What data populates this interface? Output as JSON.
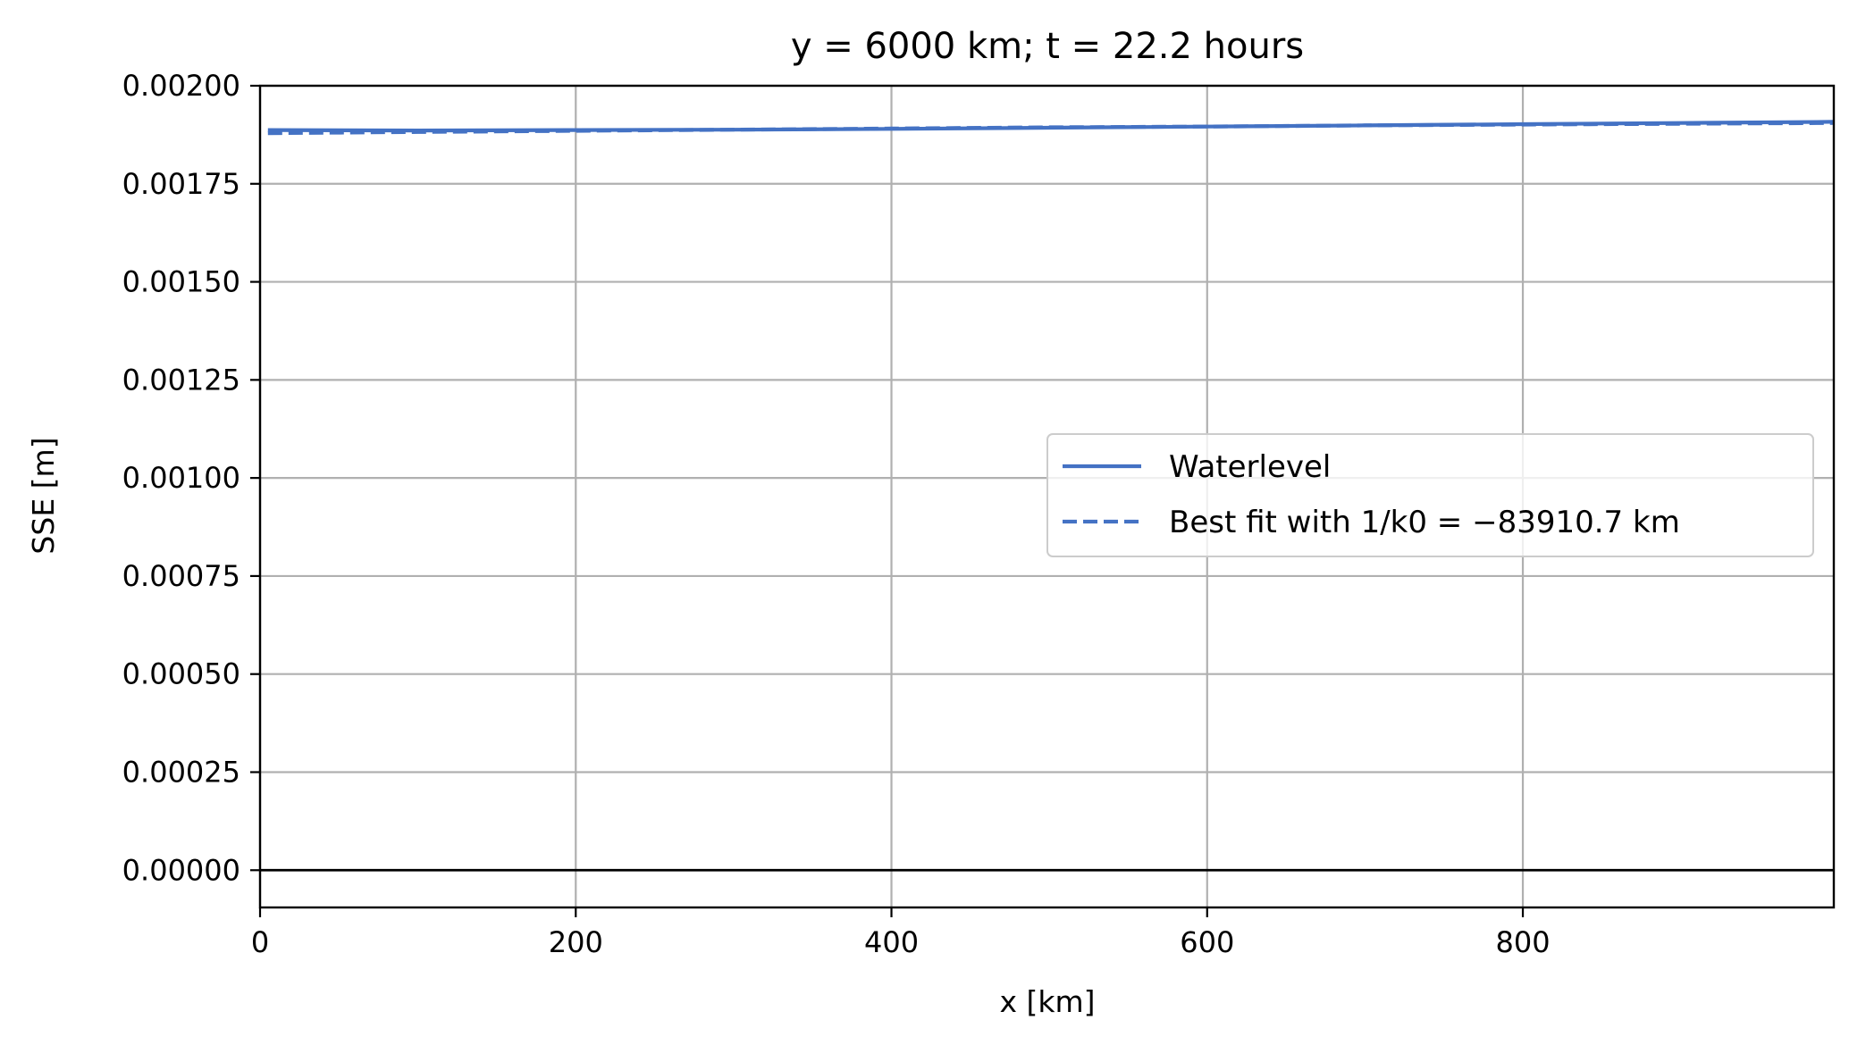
{
  "chart_data": {
    "type": "line",
    "title": "y = 6000 km; t = 22.2 hours",
    "xlabel": "x [km]",
    "ylabel": "SSE [m]",
    "xlim": [
      0,
      997
    ],
    "ylim": [
      -9.5e-05,
      0.002
    ],
    "x_ticks": [
      "0",
      "200",
      "400",
      "600",
      "800"
    ],
    "x_tick_values": [
      0,
      200,
      400,
      600,
      800
    ],
    "y_ticks": [
      "0.00000",
      "0.00025",
      "0.00050",
      "0.00075",
      "0.00100",
      "0.00125",
      "0.00150",
      "0.00175",
      "0.00200"
    ],
    "y_tick_values": [
      0,
      0.00025,
      0.0005,
      0.00075,
      0.001,
      0.00125,
      0.0015,
      0.00175,
      0.002
    ],
    "grid": true,
    "legend_position": "center-right",
    "zero_line": 0,
    "series": [
      {
        "name": "Waterlevel",
        "style": "solid",
        "color": "#4472c4",
        "x": [
          5,
          100,
          200,
          300,
          400,
          500,
          600,
          700,
          800,
          900,
          997
        ],
        "y": [
          0.001887,
          0.001886,
          0.001887,
          0.001888,
          0.00189,
          0.001893,
          0.001896,
          0.001899,
          0.001902,
          0.001905,
          0.001908
        ]
      },
      {
        "name": "Best fit with 1/k0 = −83910.7 km",
        "style": "dashed",
        "color": "#4472c4",
        "x": [
          5,
          100,
          200,
          300,
          400,
          500,
          600,
          700,
          800,
          900,
          997
        ],
        "y": [
          0.001879,
          0.001882,
          0.001885,
          0.001888,
          0.001891,
          0.001894,
          0.001896,
          0.001899,
          0.001901,
          0.001903,
          0.001905
        ]
      }
    ]
  }
}
